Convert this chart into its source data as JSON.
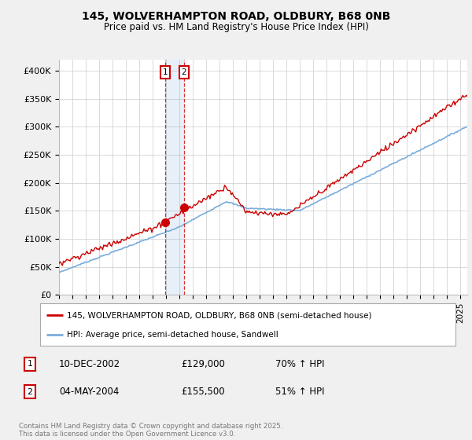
{
  "title_line1": "145, WOLVERHAMPTON ROAD, OLDBURY, B68 0NB",
  "title_line2": "Price paid vs. HM Land Registry's House Price Index (HPI)",
  "ylim": [
    0,
    420000
  ],
  "yticks": [
    0,
    50000,
    100000,
    150000,
    200000,
    250000,
    300000,
    350000,
    400000
  ],
  "ytick_labels": [
    "£0",
    "£50K",
    "£100K",
    "£150K",
    "£200K",
    "£250K",
    "£300K",
    "£350K",
    "£400K"
  ],
  "xlim_start": 1995.0,
  "xlim_end": 2025.5,
  "sale1_date": 2002.94,
  "sale1_price": 129000,
  "sale1_label": "1",
  "sale2_date": 2004.34,
  "sale2_price": 155500,
  "sale2_label": "2",
  "red_line_color": "#cc0000",
  "blue_line_color": "#7aaddc",
  "legend_label_red": "145, WOLVERHAMPTON ROAD, OLDBURY, B68 0NB (semi-detached house)",
  "legend_label_blue": "HPI: Average price, semi-detached house, Sandwell",
  "sale1_col1": "10-DEC-2002",
  "sale1_col2": "£129,000",
  "sale1_col3": "70% ↑ HPI",
  "sale2_col1": "04-MAY-2004",
  "sale2_col2": "£155,500",
  "sale2_col3": "51% ↑ HPI",
  "footnote": "Contains HM Land Registry data © Crown copyright and database right 2025.\nThis data is licensed under the Open Government Licence v3.0.",
  "bg_color": "#f0f0f0",
  "plot_bg_color": "#ffffff",
  "grid_color": "#cccccc"
}
